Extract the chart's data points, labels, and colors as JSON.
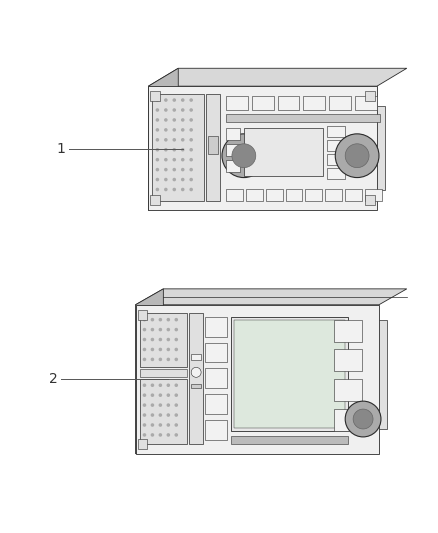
{
  "background_color": "#ffffff",
  "figure_width": 4.38,
  "figure_height": 5.33,
  "dpi": 100,
  "edge_color": "#2a2a2a",
  "edge_lw": 0.6,
  "face_light": "#f0f0f0",
  "face_mid": "#e0e0e0",
  "face_dark": "#c8c8c8",
  "top_color": "#d8d8d8",
  "side_color": "#b8b8b8",
  "grille_color": "#d0d0d0",
  "btn_color": "#f2f2f2",
  "screen_color": "#e8e8e8",
  "knob_outer": "#888888",
  "knob_inner": "#555555",
  "label_color": "#333333",
  "line_color": "#555555"
}
